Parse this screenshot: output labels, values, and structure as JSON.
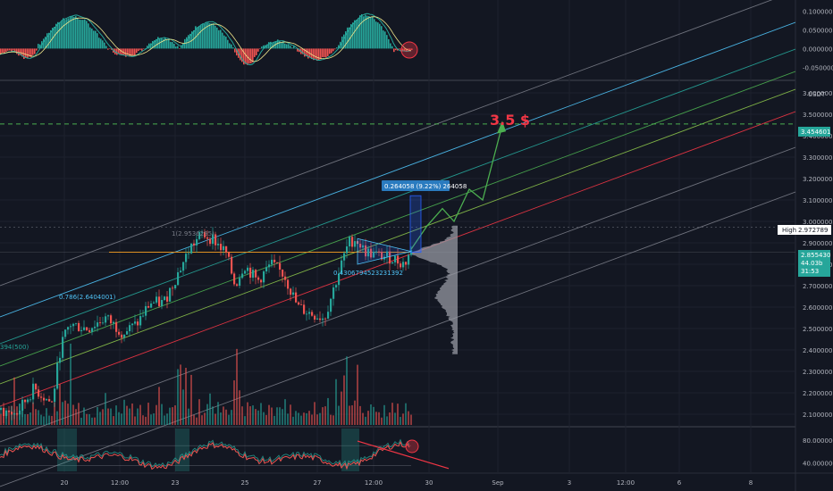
{
  "chart_data": [
    {
      "type": "line",
      "name": "macd-histogram-pane",
      "y_ticks": [
        "0.100000",
        "0.050000",
        "0.000000",
        "-0.050000"
      ],
      "ylim": [
        -0.08,
        0.12
      ],
      "colors": {
        "up": "#26a69a",
        "down": "#ef5350",
        "macd": "#26a69a",
        "signal": "#f0e68c"
      },
      "highlight_circle": true
    },
    {
      "type": "bar",
      "name": "price-pane",
      "quote_currency": "USDT",
      "y_ticks": [
        "3.600000",
        "3.500000",
        "3.400000",
        "3.300000",
        "3.200000",
        "3.100000",
        "3.000000",
        "2.900000",
        "2.800000",
        "2.700000",
        "2.600000",
        "2.500000",
        "2.400000",
        "2.300000",
        "2.200000",
        "2.100000"
      ],
      "ylim": [
        2.05,
        3.65
      ],
      "x_ticks": [
        "20",
        "12:00",
        "23",
        "25",
        "27",
        "12:00",
        "30",
        "Sep",
        "3",
        "12:00",
        "6",
        "8"
      ],
      "target_level": 3.454601,
      "target_level_label": "3.454601",
      "target_text": "3.5 $",
      "high_label": "High",
      "high_value": "2.972789",
      "current_price": "2.855430",
      "current_tag_lines": [
        "44.03b",
        "31:53"
      ],
      "fib_labels": [
        {
          "text": "1(2.9536295)",
          "color": "#787b86"
        },
        {
          "text": "0.786(2.6404001)",
          "color": "#4fc3f7"
        },
        {
          "text": "0.4306794523231392",
          "color": "#4fc3f7"
        },
        {
          "text": "394(500)",
          "color": "#26a69a"
        }
      ],
      "measure_label": "0.264058 (9.22%) 264058",
      "horizontal_level": 2.856,
      "channel_colors": [
        "#787b86",
        "#4fc3f7",
        "#26a69a",
        "#4caf50",
        "#8bc34a",
        "#f23645",
        "#787b86",
        "#787b86"
      ],
      "projection_color": "#4caf50",
      "volume_profile_color": "#9598a1",
      "candle_colors": {
        "up": "#26a69a",
        "down": "#ef5350"
      }
    },
    {
      "type": "line",
      "name": "rsi-pane",
      "y_ticks": [
        "80.000000",
        "40.000000"
      ],
      "ylim": [
        25,
        100
      ],
      "colors": {
        "rsi": "#ef5350",
        "band": "#26a69a",
        "trendline": "#f23645"
      },
      "highlight_circle": true
    }
  ]
}
